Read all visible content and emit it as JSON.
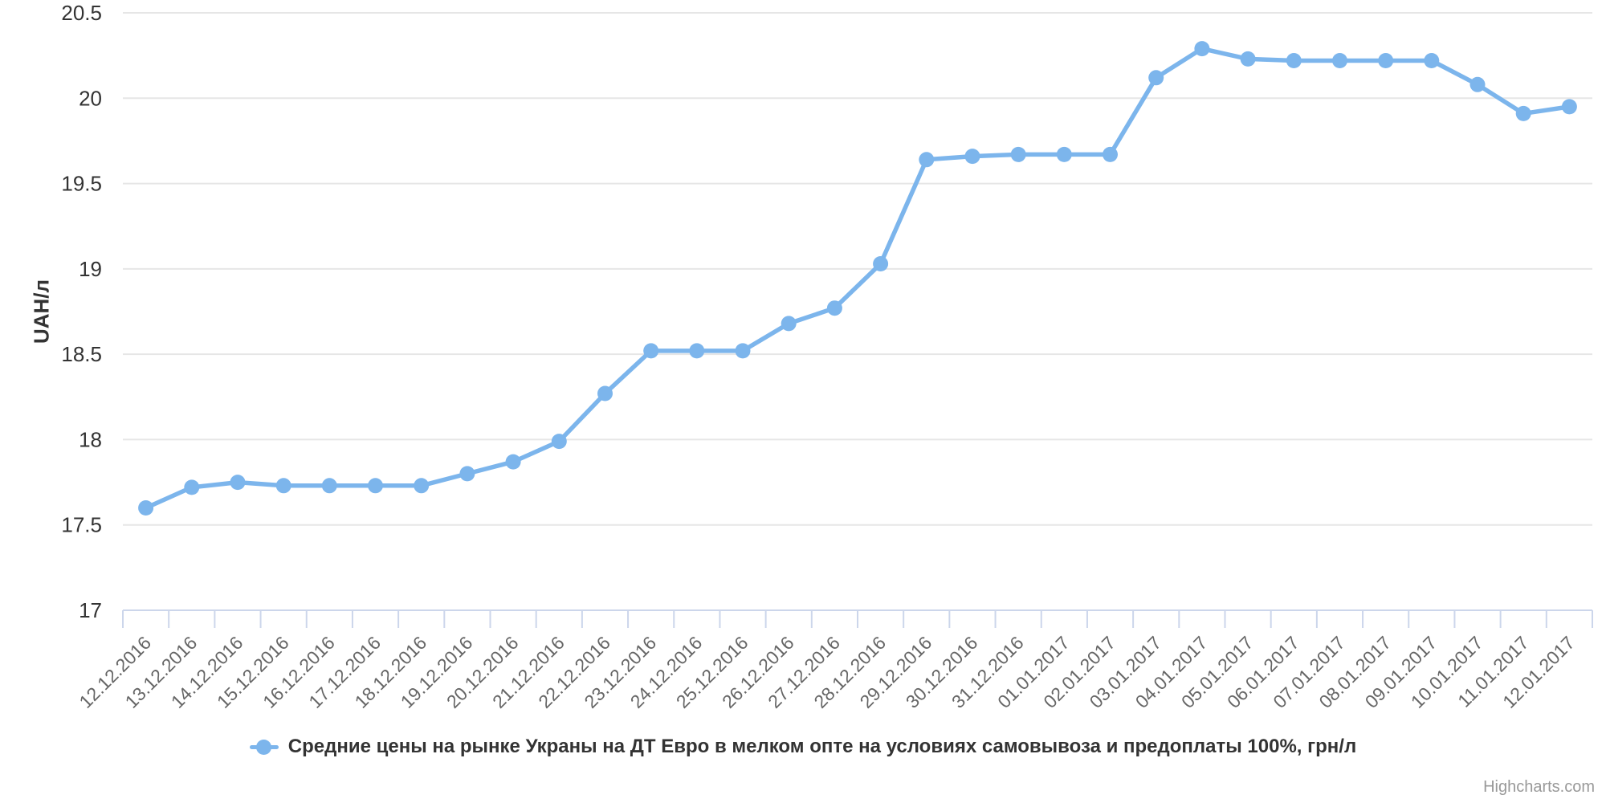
{
  "chart_data": {
    "type": "line",
    "title": "",
    "categories": [
      "12.12.2016",
      "13.12.2016",
      "14.12.2016",
      "15.12.2016",
      "16.12.2016",
      "17.12.2016",
      "18.12.2016",
      "19.12.2016",
      "20.12.2016",
      "21.12.2016",
      "22.12.2016",
      "23.12.2016",
      "24.12.2016",
      "25.12.2016",
      "26.12.2016",
      "27.12.2016",
      "28.12.2016",
      "29.12.2016",
      "30.12.2016",
      "31.12.2016",
      "01.01.2017",
      "02.01.2017",
      "03.01.2017",
      "04.01.2017",
      "05.01.2017",
      "06.01.2017",
      "07.01.2017",
      "08.01.2017",
      "09.01.2017",
      "10.01.2017",
      "11.01.2017",
      "12.01.2017"
    ],
    "series": [
      {
        "name": "Средние цены на рынке Украны на ДТ Евро в мелком опте на условиях самовывоза и предоплаты 100%, грн/л",
        "values": [
          17.6,
          17.72,
          17.75,
          17.73,
          17.73,
          17.73,
          17.73,
          17.8,
          17.87,
          17.99,
          18.27,
          18.52,
          18.52,
          18.52,
          18.68,
          18.77,
          19.03,
          19.64,
          19.66,
          19.67,
          19.67,
          19.67,
          20.12,
          20.29,
          20.23,
          20.22,
          20.22,
          20.22,
          20.22,
          20.08,
          19.91,
          19.95
        ]
      }
    ],
    "xlabel": "",
    "ylabel": "UAH/л",
    "ylim": [
      17,
      20.5
    ],
    "yticks": [
      17,
      17.5,
      18,
      18.5,
      19,
      19.5,
      20,
      20.5
    ],
    "grid": "horizontal-only",
    "legend_position": "bottom-center",
    "x_label_rotation": -45,
    "colors": {
      "series": "#7cb5ec",
      "grid": "#e6e6e6",
      "axis_line": "#ccd6eb",
      "y_label_text": "#333333",
      "x_label_text": "#666666",
      "legend_text": "#333333",
      "credits_text": "#999999",
      "background": "#ffffff"
    }
  },
  "legend": {
    "label": "Средние цены на рынке Украны на ДТ Евро в мелком опте на условиях самовывоза и предоплаты 100%, грн/л"
  },
  "yaxis": {
    "title": "UAH/л"
  },
  "credits": {
    "text": "Highcharts.com"
  }
}
